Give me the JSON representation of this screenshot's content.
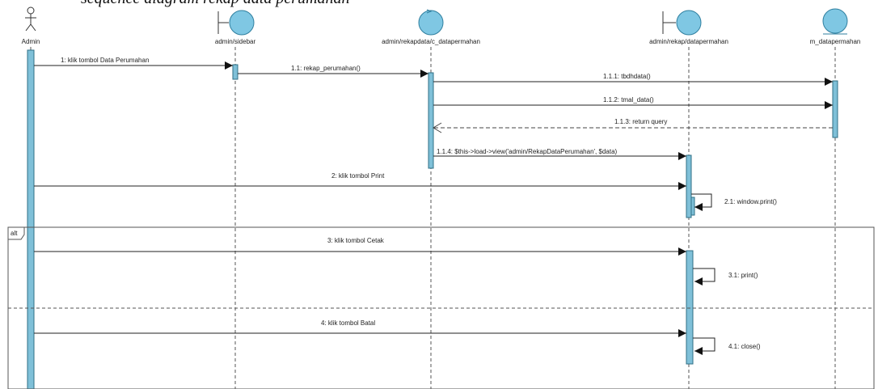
{
  "caption": "sequence diagram rekap data perumahan",
  "lifelines": [
    {
      "name": "Admin",
      "kind": "actor"
    },
    {
      "name": "admin/sidebar",
      "kind": "boundary"
    },
    {
      "name": "admin/rekapdata/c_datapermahan",
      "kind": "control"
    },
    {
      "name": "admin/rekap/datapermahan",
      "kind": "boundary"
    },
    {
      "name": "m_datapermahan",
      "kind": "entity"
    }
  ],
  "messages": [
    {
      "label": "1: klik tombol Data Perumahan",
      "from": 0,
      "to": 1,
      "type": "call"
    },
    {
      "label": "1.1: rekap_perumahan()",
      "from": 1,
      "to": 2,
      "type": "call"
    },
    {
      "label": "1.1.1: tbdhdata()",
      "from": 2,
      "to": 4,
      "type": "call"
    },
    {
      "label": "1.1.2: tmal_data()",
      "from": 2,
      "to": 4,
      "type": "call"
    },
    {
      "label": "1.1.3: return query",
      "from": 4,
      "to": 2,
      "type": "return"
    },
    {
      "label": "1.1.4: $this->load->view('admin/RekapDataPerumahan', $data)",
      "from": 2,
      "to": 3,
      "type": "call"
    },
    {
      "label": "2: klik tombol Print",
      "from": 0,
      "to": 3,
      "type": "call"
    },
    {
      "label": "2.1: window.print()",
      "from": 3,
      "to": 3,
      "type": "self"
    },
    {
      "label": "3: klik tombol Cetak",
      "from": 0,
      "to": 3,
      "type": "call"
    },
    {
      "label": "3.1: print()",
      "from": 3,
      "to": 3,
      "type": "self"
    },
    {
      "label": "4: klik tombol Batal",
      "from": 0,
      "to": 3,
      "type": "call"
    },
    {
      "label": "4.1: close()",
      "from": 3,
      "to": 3,
      "type": "self"
    }
  ],
  "fragment": {
    "operator": "alt"
  },
  "colors": {
    "lifeline_fill": "#7fc7e3",
    "activation_fill": "#7fc0d8",
    "fragment_border": "#555555"
  }
}
